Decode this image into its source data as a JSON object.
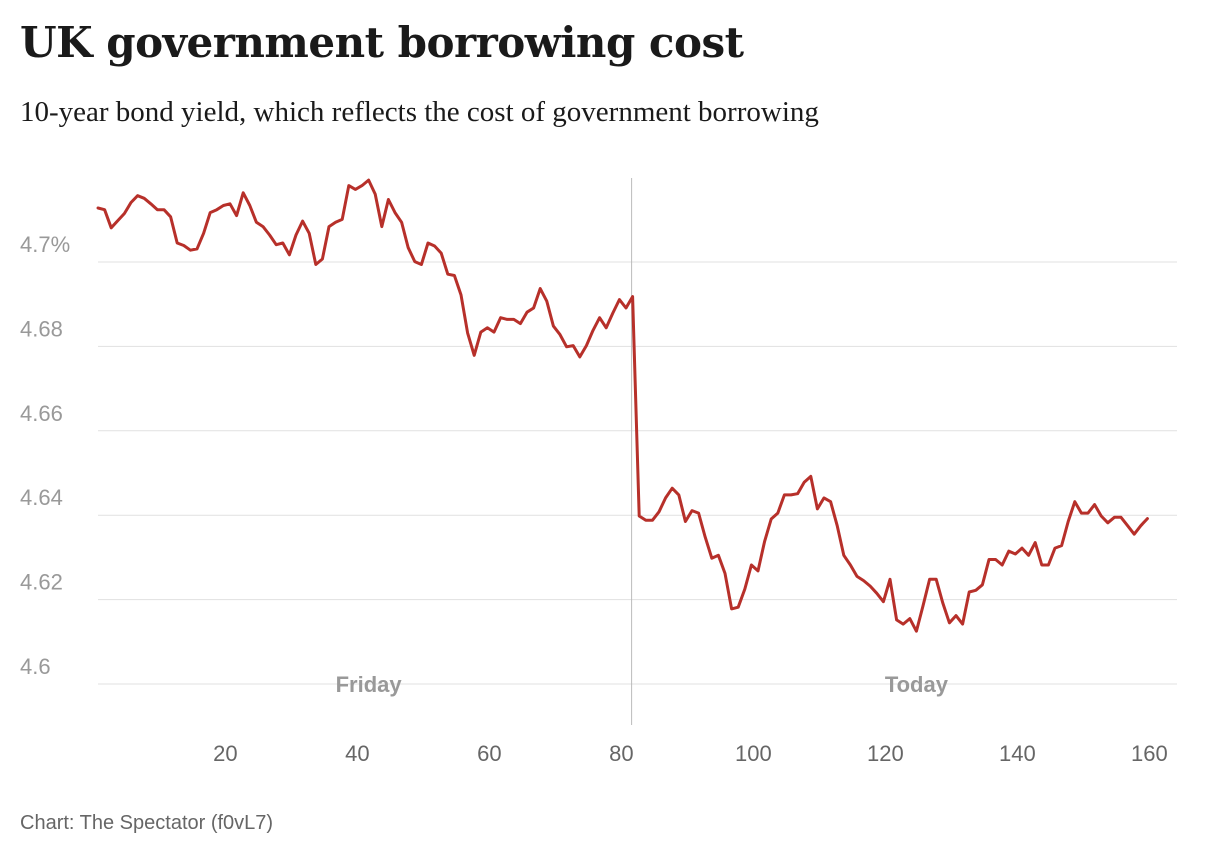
{
  "header": {
    "title": "UK government borrowing cost",
    "subtitle": "10-year bond yield, which reflects the cost of government borrowing"
  },
  "footer": {
    "credit": "Chart: The Spectator (f0vL7)"
  },
  "colors": {
    "line": "#b7302a",
    "grid": "#e1e1e1",
    "axis_text": "#999999",
    "x_tick_text": "#666666",
    "divider": "#bbbbbb"
  },
  "chart_data": {
    "type": "line",
    "title": "UK government borrowing cost",
    "subtitle": "10-year bond yield, which reflects the cost of government borrowing",
    "xlabel": "",
    "ylabel": "",
    "xlim": [
      1,
      161
    ],
    "ylim": [
      4.595,
      4.72
    ],
    "x_ticks": [
      20,
      40,
      60,
      80,
      100,
      120,
      140,
      160
    ],
    "y_ticks": [
      {
        "value": 4.6,
        "label": "4.6"
      },
      {
        "value": 4.62,
        "label": "4.62"
      },
      {
        "value": 4.64,
        "label": "4.64"
      },
      {
        "value": 4.66,
        "label": "4.66"
      },
      {
        "value": 4.68,
        "label": "4.68"
      },
      {
        "value": 4.7,
        "label": "4.7%"
      }
    ],
    "grid": true,
    "divider_x": 82,
    "annotations": [
      {
        "text": "Friday",
        "x": 42
      },
      {
        "text": "Today",
        "x": 125
      }
    ],
    "series": [
      {
        "name": "10-year bond yield",
        "x": [
          1,
          2,
          3,
          4,
          5,
          6,
          7,
          8,
          9,
          10,
          11,
          12,
          13,
          14,
          15,
          16,
          17,
          18,
          19,
          20,
          21,
          22,
          23,
          24,
          25,
          26,
          27,
          28,
          29,
          30,
          31,
          32,
          33,
          34,
          35,
          36,
          37,
          38,
          39,
          40,
          41,
          42,
          43,
          44,
          45,
          46,
          47,
          48,
          49,
          50,
          51,
          52,
          53,
          54,
          55,
          56,
          57,
          58,
          59,
          60,
          61,
          62,
          63,
          64,
          65,
          66,
          67,
          68,
          69,
          70,
          71,
          72,
          73,
          74,
          75,
          76,
          77,
          78,
          79,
          80,
          81,
          82,
          83,
          84,
          85,
          86,
          87,
          88,
          89,
          90,
          91,
          92,
          93,
          94,
          95,
          96,
          97,
          98,
          99,
          100,
          101,
          102,
          103,
          104,
          105,
          106,
          107,
          108,
          109,
          110,
          111,
          112,
          113,
          114,
          115,
          116,
          117,
          118,
          119,
          120,
          121,
          122,
          123,
          124,
          125,
          126,
          127,
          128,
          129,
          130,
          131,
          132,
          133,
          134,
          135,
          136,
          137,
          138,
          139,
          140,
          141,
          142,
          143,
          144,
          145,
          146,
          147,
          148,
          149,
          150,
          151,
          152,
          153,
          154,
          155,
          156,
          157,
          158,
          159,
          160
        ],
        "values": [
          4.7128,
          4.7124,
          4.7081,
          4.7098,
          4.7115,
          4.7141,
          4.7157,
          4.7151,
          4.7138,
          4.7124,
          4.7124,
          4.7107,
          4.7045,
          4.7039,
          4.7028,
          4.7031,
          4.7068,
          4.7117,
          4.7124,
          4.7134,
          4.7138,
          4.711,
          4.7164,
          4.7134,
          4.7094,
          4.7084,
          4.7064,
          4.7041,
          4.7045,
          4.7017,
          4.7064,
          4.7097,
          4.7068,
          4.6994,
          4.7007,
          4.7084,
          4.7094,
          4.7101,
          4.7181,
          4.7172,
          4.7181,
          4.7194,
          4.7161,
          4.7084,
          4.7148,
          4.7117,
          4.7094,
          4.7034,
          4.7001,
          4.6994,
          4.7045,
          4.7038,
          4.7021,
          4.6971,
          4.6968,
          4.6922,
          4.6832,
          4.6779,
          4.6834,
          4.6844,
          4.6834,
          4.6868,
          4.6864,
          4.6864,
          4.6854,
          4.6881,
          4.6891,
          4.6937,
          4.6907,
          4.6848,
          4.6828,
          4.6799,
          4.6802,
          4.6775,
          4.6802,
          4.6838,
          4.6868,
          4.6844,
          4.6879,
          4.6911,
          4.6891,
          4.6918,
          4.6398,
          4.6388,
          4.6388,
          4.6408,
          4.6441,
          4.6464,
          4.6448,
          4.6385,
          4.6411,
          4.6405,
          4.6348,
          4.6298,
          4.6305,
          4.6262,
          4.6178,
          4.6182,
          4.6225,
          4.6282,
          4.6268,
          4.6338,
          4.6391,
          4.6405,
          4.6448,
          4.6448,
          4.6451,
          4.6478,
          4.6492,
          4.6415,
          4.6441,
          4.6432,
          4.6375,
          4.6305,
          4.6282,
          4.6255,
          4.6245,
          4.6232,
          4.6215,
          4.6195,
          4.6248,
          4.6152,
          4.6142,
          4.6155,
          4.6125,
          4.6185,
          4.6248,
          4.6248,
          4.6192,
          4.6145,
          4.6162,
          4.6142,
          4.6218,
          4.6222,
          4.6235,
          4.6295,
          4.6295,
          4.6282,
          4.6315,
          4.6308,
          4.6322,
          4.6305,
          4.6335,
          4.6282,
          4.6282,
          4.6322,
          4.6328,
          4.6385,
          4.6432,
          4.6405,
          4.6405,
          4.6425,
          4.6398,
          4.6382,
          4.6395,
          4.6395,
          4.6375,
          4.6355,
          4.6375,
          4.6392
        ]
      }
    ]
  }
}
